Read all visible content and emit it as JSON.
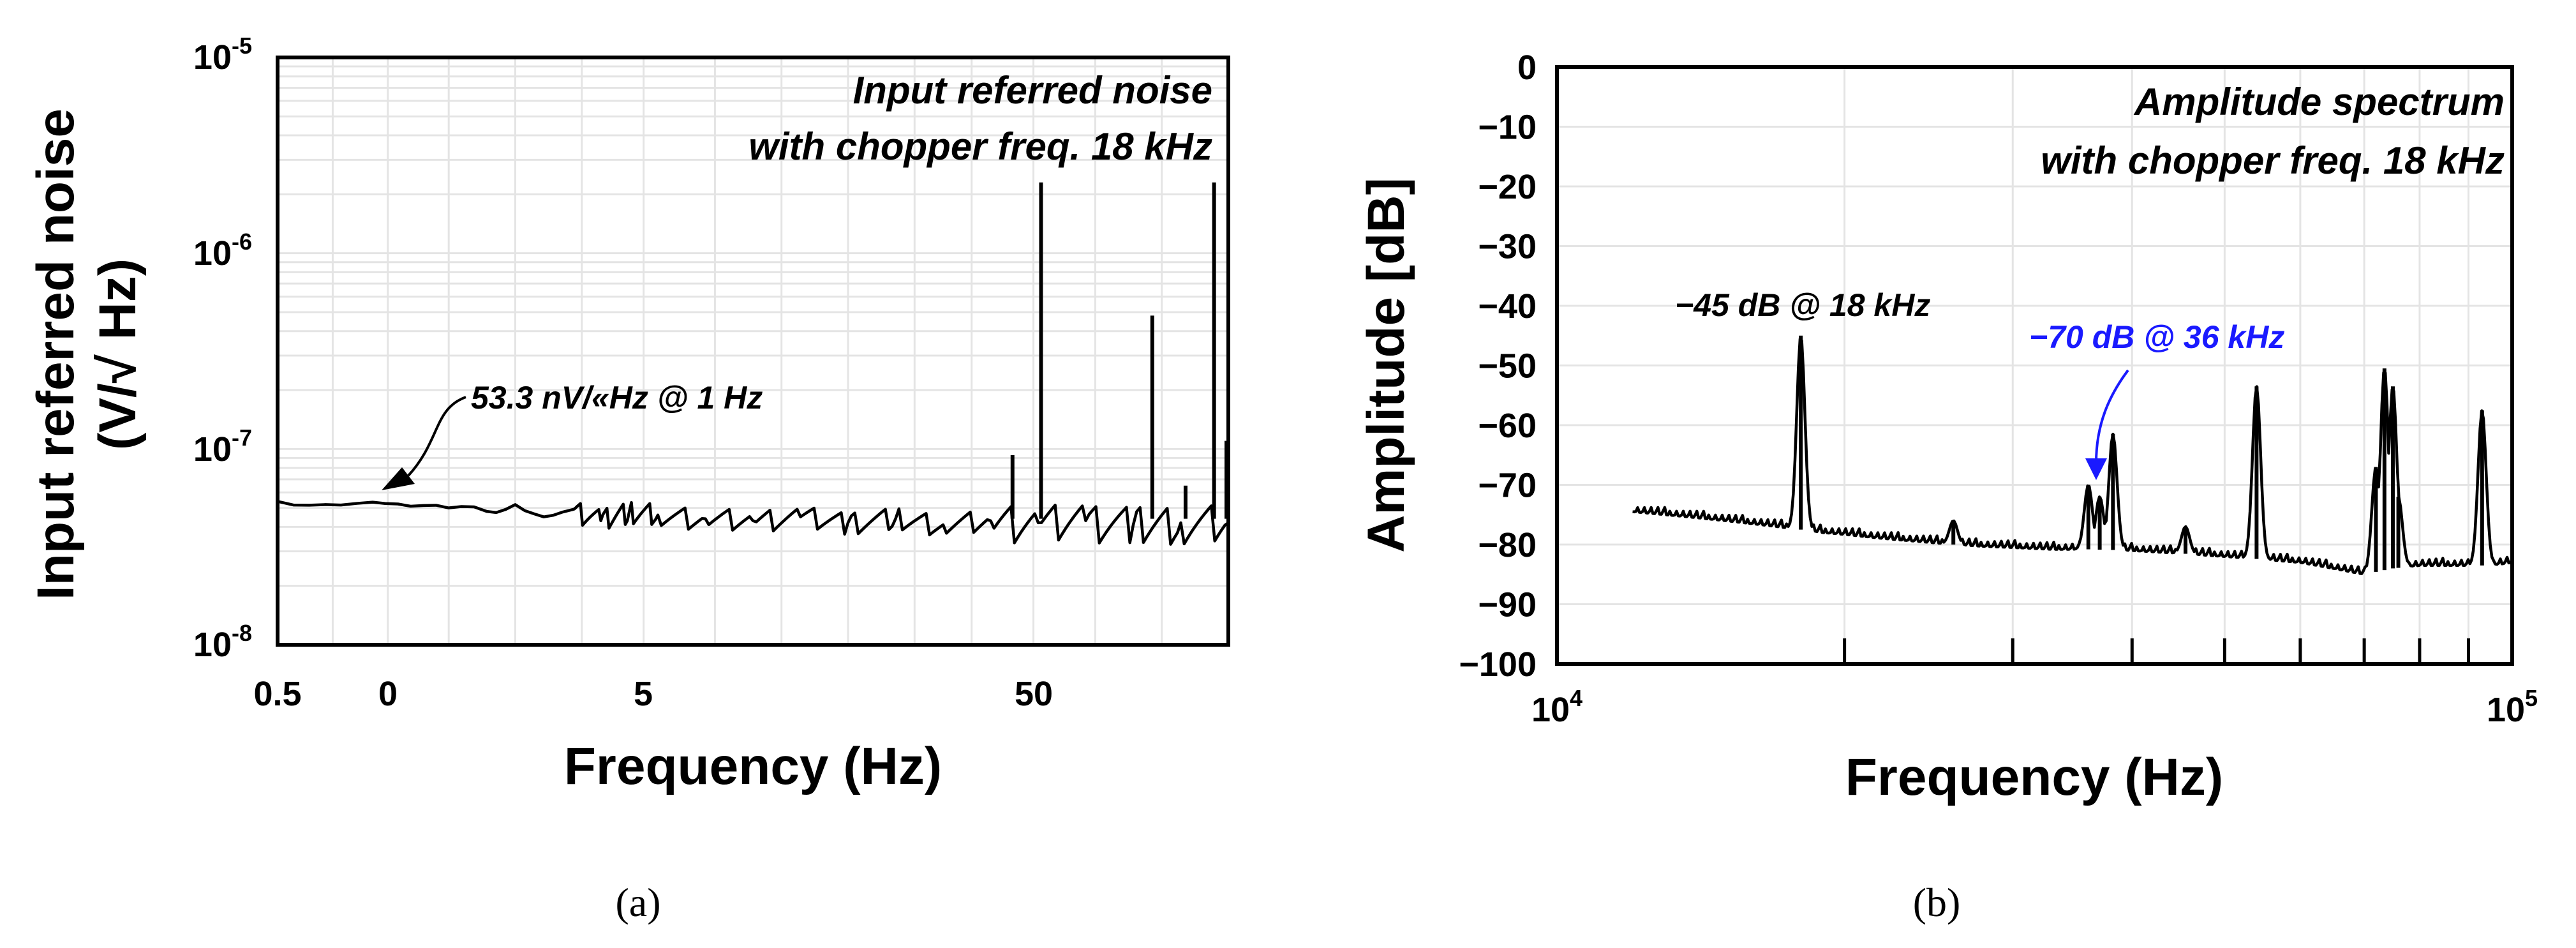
{
  "chart_data": [
    {
      "panel": "(a)",
      "type": "line",
      "title_lines": [
        "Input referred noise",
        "with chopper freq. 18 kHz"
      ],
      "xlabel": "Frequency (Hz)",
      "ylabel_lines": [
        "Input referred noise",
        "(V/√ Hz)"
      ],
      "x_ticks": [
        "0.5",
        "0",
        "5",
        "50"
      ],
      "x_tick_frac": [
        0.0,
        0.116,
        0.385,
        0.795
      ],
      "y_scale": "log",
      "ylim": [
        1e-08,
        1e-05
      ],
      "y_ticks": [
        {
          "value": 1e-05,
          "base": "10",
          "exp": "-5"
        },
        {
          "value": 1e-06,
          "base": "10",
          "exp": "-6"
        },
        {
          "value": 1e-07,
          "base": "10",
          "exp": "-7"
        },
        {
          "value": 1e-08,
          "base": "10",
          "exp": "-8"
        }
      ],
      "grid": true,
      "annotation": "53.3 nV/«Hz @ 1 Hz",
      "series": [
        {
          "trace": {
            "x_frac": [
              0.0,
              0.05,
              0.1,
              0.14,
              0.18,
              0.22,
              0.25,
              0.28,
              0.31,
              0.34,
              0.37,
              0.4,
              0.45,
              0.5,
              0.55,
              0.6,
              0.65,
              0.7,
              0.75,
              0.8,
              0.85,
              0.9,
              0.95,
              1.0
            ],
            "y": [
              5.4e-08,
              5.2e-08,
              5.35e-08,
              5.1e-08,
              5e-08,
              4.8e-08,
              5.2e-08,
              4.5e-08,
              4.9e-08,
              4.3e-08,
              4.8e-08,
              4.6e-08,
              4.4e-08,
              4.3e-08,
              4.5e-08,
              4.2e-08,
              4.4e-08,
              4.1e-08,
              4.3e-08,
              4.2e-08,
              4.3e-08,
              4.1e-08,
              4.2e-08,
              4.2e-08
            ]
          },
          "spikes": [
            {
              "x_frac": 0.773,
              "y": 9.3e-08
            },
            {
              "x_frac": 0.803,
              "y": 2.3e-06
            },
            {
              "x_frac": 0.92,
              "y": 4.8e-07
            },
            {
              "x_frac": 0.955,
              "y": 6.5e-08
            },
            {
              "x_frac": 0.985,
              "y": 2.3e-06
            },
            {
              "x_frac": 0.998,
              "y": 1.1e-07
            }
          ]
        }
      ]
    },
    {
      "panel": "(b)",
      "type": "line",
      "title_lines": [
        "Amplitude spectrum",
        "with chopper freq. 18 kHz"
      ],
      "xlabel": "Frequency (Hz)",
      "ylabel": "Amplitude [dB]",
      "x_scale": "log",
      "xlim": [
        10000,
        100000
      ],
      "x_ticks": [
        {
          "value": 10000,
          "base": "10",
          "exp": "4"
        },
        {
          "value": 100000,
          "base": "10",
          "exp": "5"
        }
      ],
      "x_minor_ticks": [
        20000,
        30000,
        40000,
        50000,
        60000,
        70000,
        80000,
        90000
      ],
      "ylim": [
        -100,
        0
      ],
      "y_ticks": [
        0,
        -10,
        -20,
        -30,
        -40,
        -50,
        -60,
        -70,
        -80,
        -90,
        -100
      ],
      "grid": true,
      "annotations": [
        {
          "text": "−45 dB  @ 18 kHz",
          "color": "#000000"
        },
        {
          "text": "−70 dB  @ 36 kHz",
          "color": "#1a1aff"
        }
      ],
      "series": [
        {
          "baseline": {
            "x": [
              12000,
              13000,
              14000,
              15000,
              16000,
              17000,
              18000,
              19000,
              20000,
              22000,
              24000,
              26000,
              28000,
              30000,
              33000,
              36000,
              40000,
              45000,
              50000,
              55000,
              60000,
              65000,
              70000,
              75000,
              80000,
              85000,
              90000,
              95000,
              100000
            ],
            "y": [
              -74.5,
              -75,
              -75.5,
              -76,
              -76.5,
              -77,
              -77.5,
              -78,
              -78.3,
              -79,
              -79.5,
              -80,
              -80.3,
              -80.5,
              -80.8,
              -80.8,
              -81,
              -81.5,
              -82,
              -82.5,
              -83,
              -84,
              -85,
              -84,
              -83.5,
              -83.5,
              -83.5,
              -83.5,
              -83
            ]
          },
          "peaks": [
            {
              "x": 18000,
              "y": -45
            },
            {
              "x": 26000,
              "y": -76
            },
            {
              "x": 36000,
              "y": -70
            },
            {
              "x": 37000,
              "y": -72
            },
            {
              "x": 38200,
              "y": -61.5
            },
            {
              "x": 45500,
              "y": -77
            },
            {
              "x": 54000,
              "y": -53.5
            },
            {
              "x": 72000,
              "y": -67
            },
            {
              "x": 73500,
              "y": -50.5
            },
            {
              "x": 75000,
              "y": -53.5
            },
            {
              "x": 76000,
              "y": -72
            },
            {
              "x": 93000,
              "y": -57.5
            }
          ]
        }
      ]
    }
  ],
  "captions": [
    "(a)",
    "(b)"
  ]
}
